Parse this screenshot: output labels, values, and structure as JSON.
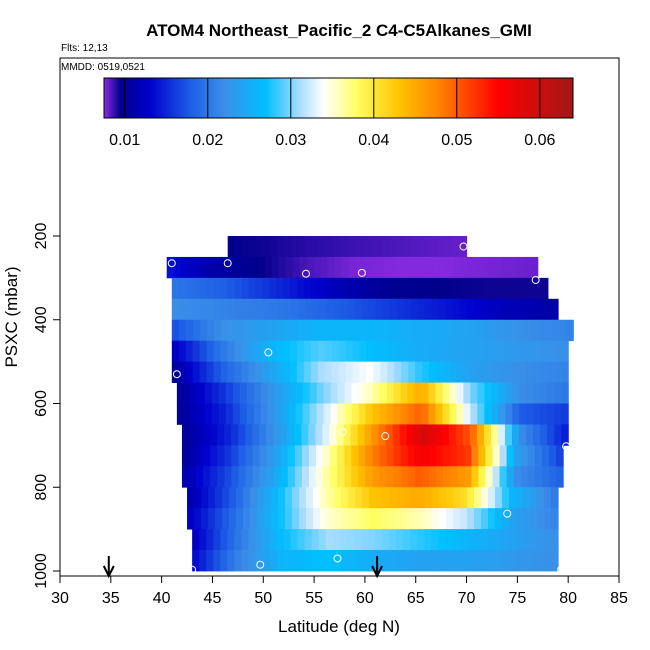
{
  "chart_data": {
    "type": "heatmap",
    "title": "ATOM4 Northeast_Pacific_2 C4-C5Alkanes_GMI",
    "annotations": [
      "Flts: 12,13",
      "MMDD: 0519,0521"
    ],
    "xlabel": "Latitude (deg N)",
    "ylabel": "PSXC (mbar)",
    "xlim": [
      30,
      85
    ],
    "ylim": [
      1000,
      0
    ],
    "x_ticks": [
      30,
      35,
      40,
      45,
      50,
      55,
      60,
      65,
      70,
      75,
      80,
      85
    ],
    "y_ticks": [
      200,
      400,
      600,
      800,
      1000
    ],
    "colorbar": {
      "vmin": 0.0075,
      "vmax": 0.064,
      "ticks": [
        0.01,
        0.02,
        0.03,
        0.04,
        0.05,
        0.06
      ],
      "tick_labels": [
        "0.01",
        "0.02",
        "0.03",
        "0.04",
        "0.05",
        "0.06"
      ],
      "stops": [
        {
          "v": 0.0075,
          "color": "#8a2be2"
        },
        {
          "v": 0.0095,
          "color": "#00008b"
        },
        {
          "v": 0.013,
          "color": "#0000cd"
        },
        {
          "v": 0.018,
          "color": "#1e5fe6"
        },
        {
          "v": 0.022,
          "color": "#3a8fe8"
        },
        {
          "v": 0.027,
          "color": "#00bfff"
        },
        {
          "v": 0.031,
          "color": "#a8dcff"
        },
        {
          "v": 0.034,
          "color": "#ffffff"
        },
        {
          "v": 0.038,
          "color": "#ffff60"
        },
        {
          "v": 0.043,
          "color": "#ffc400"
        },
        {
          "v": 0.048,
          "color": "#ff8000"
        },
        {
          "v": 0.055,
          "color": "#ff0000"
        },
        {
          "v": 0.064,
          "color": "#a01818"
        }
      ]
    },
    "rows": [
      {
        "p": 225,
        "lat0": 46.5,
        "lat1": 70,
        "v": [
          0.0095,
          0.0093,
          0.009,
          0.0088,
          0.0086,
          0.0084,
          0.0082,
          0.008
        ]
      },
      {
        "p": 275,
        "lat0": 40.5,
        "lat1": 77,
        "v": [
          0.014,
          0.011,
          0.0095,
          0.0085,
          0.0078,
          0.0076,
          0.0076,
          0.0078,
          0.008
        ]
      },
      {
        "p": 325,
        "lat0": 41,
        "lat1": 78,
        "v": [
          0.02,
          0.018,
          0.015,
          0.012,
          0.01,
          0.0095,
          0.0093,
          0.0093
        ]
      },
      {
        "p": 375,
        "lat0": 41,
        "lat1": 79,
        "v": [
          0.022,
          0.021,
          0.02,
          0.018,
          0.016,
          0.014,
          0.012,
          0.011
        ]
      },
      {
        "p": 425,
        "lat0": 41,
        "lat1": 80.5,
        "v": [
          0.017,
          0.022,
          0.024,
          0.026,
          0.026,
          0.025,
          0.024,
          0.022,
          0.021
        ]
      },
      {
        "p": 475,
        "lat0": 41,
        "lat1": 80,
        "v": [
          0.012,
          0.02,
          0.026,
          0.029,
          0.027,
          0.025,
          0.024,
          0.023,
          0.022
        ]
      },
      {
        "p": 525,
        "lat0": 41,
        "lat1": 80,
        "v": [
          0.01,
          0.018,
          0.024,
          0.031,
          0.034,
          0.028,
          0.024,
          0.022,
          0.021
        ]
      },
      {
        "p": 575,
        "lat0": 41.5,
        "lat1": 80,
        "v": [
          0.01,
          0.016,
          0.023,
          0.03,
          0.036,
          0.045,
          0.03,
          0.022,
          0.02
        ]
      },
      {
        "p": 625,
        "lat0": 41.5,
        "lat1": 80,
        "v": [
          0.01,
          0.015,
          0.023,
          0.032,
          0.043,
          0.05,
          0.032,
          0.018,
          0.016
        ]
      },
      {
        "p": 675,
        "lat0": 42,
        "lat1": 80,
        "v": [
          0.01,
          0.015,
          0.023,
          0.033,
          0.047,
          0.059,
          0.05,
          0.022,
          0.014
        ]
      },
      {
        "p": 725,
        "lat0": 42,
        "lat1": 79.5,
        "v": [
          0.01,
          0.016,
          0.024,
          0.035,
          0.048,
          0.056,
          0.052,
          0.024,
          0.016
        ]
      },
      {
        "p": 775,
        "lat0": 42,
        "lat1": 79.5,
        "v": [
          0.011,
          0.017,
          0.025,
          0.036,
          0.046,
          0.05,
          0.046,
          0.022,
          0.018
        ]
      },
      {
        "p": 825,
        "lat0": 42.5,
        "lat1": 79,
        "v": [
          0.011,
          0.018,
          0.027,
          0.036,
          0.043,
          0.045,
          0.041,
          0.026,
          0.02
        ]
      },
      {
        "p": 875,
        "lat0": 42.5,
        "lat1": 79,
        "v": [
          0.012,
          0.019,
          0.027,
          0.035,
          0.038,
          0.036,
          0.032,
          0.024,
          0.021
        ]
      },
      {
        "p": 925,
        "lat0": 43,
        "lat1": 79,
        "v": [
          0.012,
          0.02,
          0.027,
          0.031,
          0.03,
          0.028,
          0.026,
          0.024,
          0.022
        ]
      },
      {
        "p": 975,
        "lat0": 43,
        "lat1": 79,
        "v": [
          0.013,
          0.021,
          0.026,
          0.027,
          0.025,
          0.024,
          0.024,
          0.023,
          0.022
        ]
      }
    ],
    "flight_points": [
      {
        "lat": 69.7,
        "p": 225
      },
      {
        "lat": 46.5,
        "p": 265
      },
      {
        "lat": 41.0,
        "p": 265
      },
      {
        "lat": 54.2,
        "p": 290
      },
      {
        "lat": 59.7,
        "p": 288
      },
      {
        "lat": 76.8,
        "p": 305
      },
      {
        "lat": 80.5,
        "p": 460
      },
      {
        "lat": 50.5,
        "p": 478
      },
      {
        "lat": 41.5,
        "p": 530
      },
      {
        "lat": 57.8,
        "p": 668
      },
      {
        "lat": 62.0,
        "p": 678
      },
      {
        "lat": 79.8,
        "p": 702
      },
      {
        "lat": 74.0,
        "p": 863
      },
      {
        "lat": 57.3,
        "p": 970
      },
      {
        "lat": 49.7,
        "p": 985
      },
      {
        "lat": 43.0,
        "p": 997
      },
      {
        "lat": 79.3,
        "p": 997
      }
    ],
    "arrows": [
      {
        "lat": 34.8
      },
      {
        "lat": 61.2
      }
    ]
  }
}
